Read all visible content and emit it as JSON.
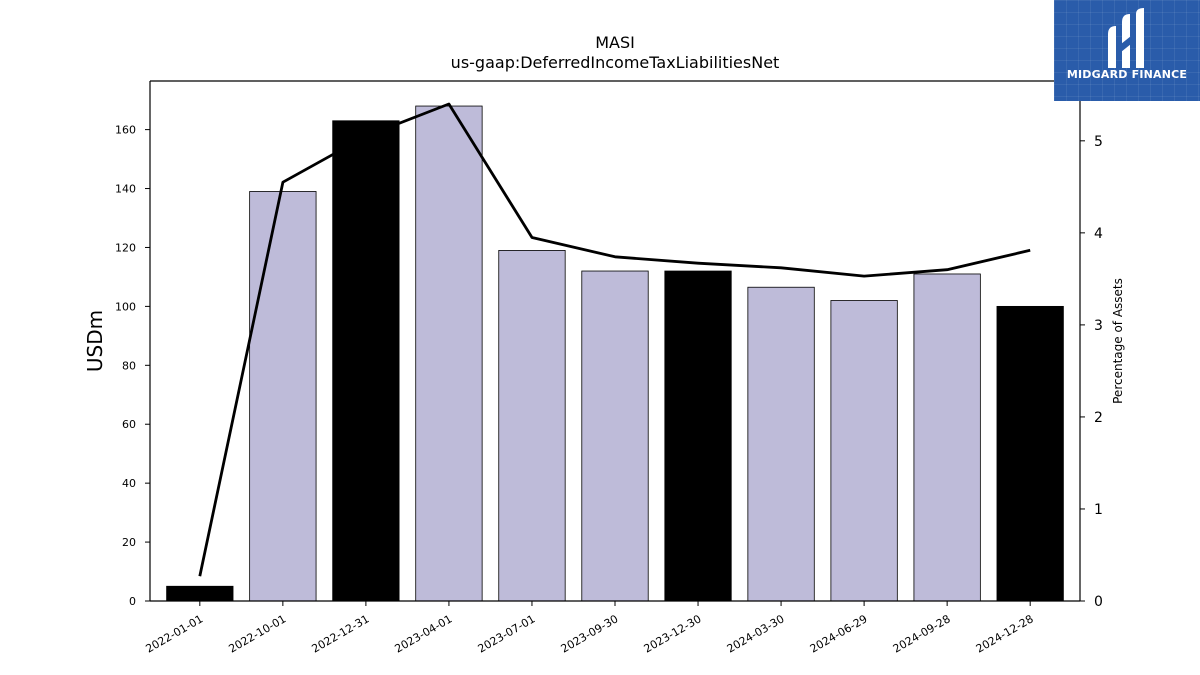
{
  "chart_data": {
    "type": "bar",
    "title": "MASI",
    "subtitle": "us-gaap:DeferredIncomeTaxLiabilitiesNet",
    "ylabel": "USDm",
    "ylabel_right": "Percentage of Assets",
    "categories": [
      "2022-01-01",
      "2022-10-01",
      "2022-12-31",
      "2023-04-01",
      "2023-07-01",
      "2023-09-30",
      "2023-12-30",
      "2024-03-30",
      "2024-06-29",
      "2024-09-28",
      "2024-12-28"
    ],
    "values": [
      5,
      139,
      163,
      168,
      119,
      112,
      112,
      106.5,
      102,
      111,
      100
    ],
    "bar_colors": [
      "#000000",
      "#bebbd9",
      "#000000",
      "#bebbd9",
      "#bebbd9",
      "#bebbd9",
      "#000000",
      "#bebbd9",
      "#bebbd9",
      "#bebbd9",
      "#000000"
    ],
    "line_series": {
      "axis": "right",
      "values": [
        0.27,
        4.55,
        5.05,
        5.4,
        3.95,
        3.74,
        3.67,
        3.62,
        3.53,
        3.6,
        3.81
      ],
      "color": "#000000"
    },
    "ylim": [
      0,
      176.5
    ],
    "ylim_right": [
      0,
      5.65
    ],
    "yticks": [
      0,
      20,
      40,
      60,
      80,
      100,
      120,
      140,
      160
    ],
    "yticks_right": [
      0,
      1,
      2,
      3,
      4,
      5
    ],
    "grid": false,
    "legend": "none"
  },
  "logo": {
    "text": "MIDGARD FINANCE",
    "bg_color": "#2a5caa"
  }
}
